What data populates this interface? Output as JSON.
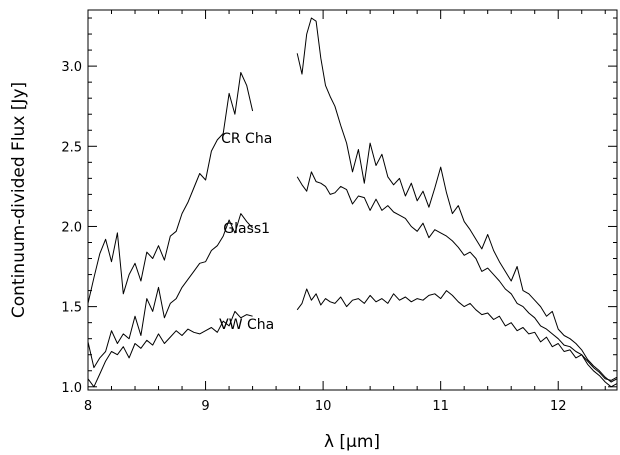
{
  "chart_data": {
    "type": "line",
    "title": "",
    "xlabel": "λ [μm]",
    "ylabel": "Continuum-divided Flux [Jy]",
    "xlim": [
      8.0,
      12.5
    ],
    "ylim": [
      0.98,
      3.35
    ],
    "grid": false,
    "legend": "none",
    "x_ticks": [
      8,
      9,
      10,
      11,
      12
    ],
    "x_tick_labels": [
      "8",
      "9",
      "10",
      "11",
      "12"
    ],
    "y_ticks": [
      1.0,
      1.5,
      2.0,
      2.5,
      3.0
    ],
    "y_tick_labels": [
      "1.0",
      "1.5",
      "2.0",
      "2.5",
      "3.0"
    ],
    "annotations": [
      {
        "text": "CR Cha",
        "x": 9.35,
        "y": 2.52
      },
      {
        "text": "Glass1",
        "x": 9.35,
        "y": 1.96
      },
      {
        "text": "VW Cha",
        "x": 9.35,
        "y": 1.36
      }
    ],
    "series": [
      {
        "label": "CR Cha",
        "color": "#000000",
        "x": [
          8.0,
          8.05,
          8.1,
          8.15,
          8.2,
          8.25,
          8.3,
          8.35,
          8.4,
          8.45,
          8.5,
          8.55,
          8.6,
          8.65,
          8.7,
          8.75,
          8.8,
          8.85,
          8.9,
          8.95,
          9.0,
          9.05,
          9.1,
          9.15,
          9.2,
          9.25,
          9.3,
          9.35,
          9.4,
          null,
          9.78,
          9.82,
          9.86,
          9.9,
          9.94,
          9.98,
          10.02,
          10.06,
          10.1,
          10.15,
          10.2,
          10.25,
          10.3,
          10.35,
          10.4,
          10.45,
          10.5,
          10.55,
          10.6,
          10.65,
          10.7,
          10.75,
          10.8,
          10.85,
          10.9,
          10.95,
          11.0,
          11.05,
          11.1,
          11.15,
          11.2,
          11.25,
          11.3,
          11.35,
          11.4,
          11.45,
          11.5,
          11.55,
          11.6,
          11.65,
          11.7,
          11.75,
          11.8,
          11.85,
          11.9,
          11.95,
          12.0,
          12.05,
          12.1,
          12.15,
          12.2,
          12.25,
          12.3,
          12.35,
          12.4,
          12.45,
          12.5
        ],
        "y": [
          1.52,
          1.68,
          1.83,
          1.92,
          1.78,
          1.96,
          1.58,
          1.7,
          1.77,
          1.66,
          1.84,
          1.8,
          1.88,
          1.79,
          1.94,
          1.97,
          2.08,
          2.15,
          2.24,
          2.33,
          2.29,
          2.47,
          2.54,
          2.58,
          2.83,
          2.7,
          2.96,
          2.88,
          2.72,
          null,
          3.08,
          2.95,
          3.2,
          3.3,
          3.28,
          3.05,
          2.88,
          2.81,
          2.75,
          2.63,
          2.52,
          2.34,
          2.48,
          2.27,
          2.52,
          2.38,
          2.45,
          2.31,
          2.26,
          2.3,
          2.19,
          2.27,
          2.16,
          2.22,
          2.12,
          2.24,
          2.37,
          2.21,
          2.08,
          2.13,
          2.03,
          1.98,
          1.92,
          1.86,
          1.95,
          1.85,
          1.78,
          1.72,
          1.66,
          1.75,
          1.6,
          1.58,
          1.54,
          1.5,
          1.44,
          1.47,
          1.36,
          1.32,
          1.3,
          1.27,
          1.23,
          1.17,
          1.13,
          1.1,
          1.06,
          1.03,
          1.05
        ]
      },
      {
        "label": "Glass1",
        "color": "#000000",
        "x": [
          8.0,
          8.05,
          8.1,
          8.15,
          8.2,
          8.25,
          8.3,
          8.35,
          8.4,
          8.45,
          8.5,
          8.55,
          8.6,
          8.65,
          8.7,
          8.75,
          8.8,
          8.85,
          8.9,
          8.95,
          9.0,
          9.05,
          9.1,
          9.15,
          9.2,
          9.25,
          9.3,
          9.35,
          9.4,
          null,
          9.78,
          9.82,
          9.86,
          9.9,
          9.94,
          9.98,
          10.02,
          10.06,
          10.1,
          10.15,
          10.2,
          10.25,
          10.3,
          10.35,
          10.4,
          10.45,
          10.5,
          10.55,
          10.6,
          10.65,
          10.7,
          10.75,
          10.8,
          10.85,
          10.9,
          10.95,
          11.0,
          11.05,
          11.1,
          11.15,
          11.2,
          11.25,
          11.3,
          11.35,
          11.4,
          11.45,
          11.5,
          11.55,
          11.6,
          11.65,
          11.7,
          11.75,
          11.8,
          11.85,
          11.9,
          11.95,
          12.0,
          12.05,
          12.1,
          12.15,
          12.2,
          12.25,
          12.3,
          12.35,
          12.4,
          12.45,
          12.5
        ],
        "y": [
          1.28,
          1.12,
          1.18,
          1.22,
          1.35,
          1.27,
          1.33,
          1.3,
          1.44,
          1.32,
          1.55,
          1.47,
          1.62,
          1.43,
          1.52,
          1.55,
          1.62,
          1.67,
          1.72,
          1.77,
          1.78,
          1.85,
          1.88,
          1.94,
          2.04,
          1.96,
          2.08,
          2.03,
          1.99,
          null,
          2.31,
          2.26,
          2.22,
          2.34,
          2.28,
          2.27,
          2.25,
          2.2,
          2.21,
          2.25,
          2.23,
          2.14,
          2.19,
          2.18,
          2.1,
          2.17,
          2.1,
          2.13,
          2.09,
          2.07,
          2.05,
          2.0,
          1.97,
          2.02,
          1.93,
          1.98,
          1.96,
          1.94,
          1.91,
          1.87,
          1.82,
          1.84,
          1.8,
          1.72,
          1.74,
          1.7,
          1.66,
          1.61,
          1.58,
          1.52,
          1.5,
          1.46,
          1.43,
          1.38,
          1.36,
          1.33,
          1.3,
          1.26,
          1.25,
          1.22,
          1.2,
          1.16,
          1.12,
          1.09,
          1.05,
          1.04,
          1.06
        ]
      },
      {
        "label": "VW Cha",
        "color": "#000000",
        "x": [
          8.0,
          8.05,
          8.1,
          8.15,
          8.2,
          8.25,
          8.3,
          8.35,
          8.4,
          8.45,
          8.5,
          8.55,
          8.6,
          8.65,
          8.7,
          8.75,
          8.8,
          8.85,
          8.9,
          8.95,
          9.0,
          9.05,
          9.1,
          9.15,
          9.2,
          9.25,
          9.3,
          9.35,
          9.4,
          null,
          9.78,
          9.82,
          9.86,
          9.9,
          9.94,
          9.98,
          10.02,
          10.06,
          10.1,
          10.15,
          10.2,
          10.25,
          10.3,
          10.35,
          10.4,
          10.45,
          10.5,
          10.55,
          10.6,
          10.65,
          10.7,
          10.75,
          10.8,
          10.85,
          10.9,
          10.95,
          11.0,
          11.05,
          11.1,
          11.15,
          11.2,
          11.25,
          11.3,
          11.35,
          11.4,
          11.45,
          11.5,
          11.55,
          11.6,
          11.65,
          11.7,
          11.75,
          11.8,
          11.85,
          11.9,
          11.95,
          12.0,
          12.05,
          12.1,
          12.15,
          12.2,
          12.25,
          12.3,
          12.35,
          12.4,
          12.45,
          12.5
        ],
        "y": [
          1.05,
          1.0,
          1.08,
          1.16,
          1.22,
          1.2,
          1.25,
          1.18,
          1.27,
          1.24,
          1.29,
          1.26,
          1.33,
          1.27,
          1.31,
          1.35,
          1.32,
          1.36,
          1.34,
          1.33,
          1.35,
          1.37,
          1.34,
          1.41,
          1.38,
          1.47,
          1.43,
          1.45,
          1.44,
          null,
          1.48,
          1.52,
          1.61,
          1.54,
          1.58,
          1.51,
          1.55,
          1.53,
          1.52,
          1.56,
          1.5,
          1.54,
          1.55,
          1.52,
          1.57,
          1.53,
          1.55,
          1.52,
          1.58,
          1.54,
          1.56,
          1.53,
          1.55,
          1.54,
          1.57,
          1.58,
          1.55,
          1.6,
          1.57,
          1.53,
          1.5,
          1.52,
          1.48,
          1.45,
          1.46,
          1.42,
          1.44,
          1.38,
          1.4,
          1.35,
          1.37,
          1.33,
          1.34,
          1.28,
          1.31,
          1.25,
          1.27,
          1.22,
          1.23,
          1.18,
          1.2,
          1.14,
          1.1,
          1.07,
          1.03,
          1.0,
          1.02
        ]
      }
    ]
  }
}
